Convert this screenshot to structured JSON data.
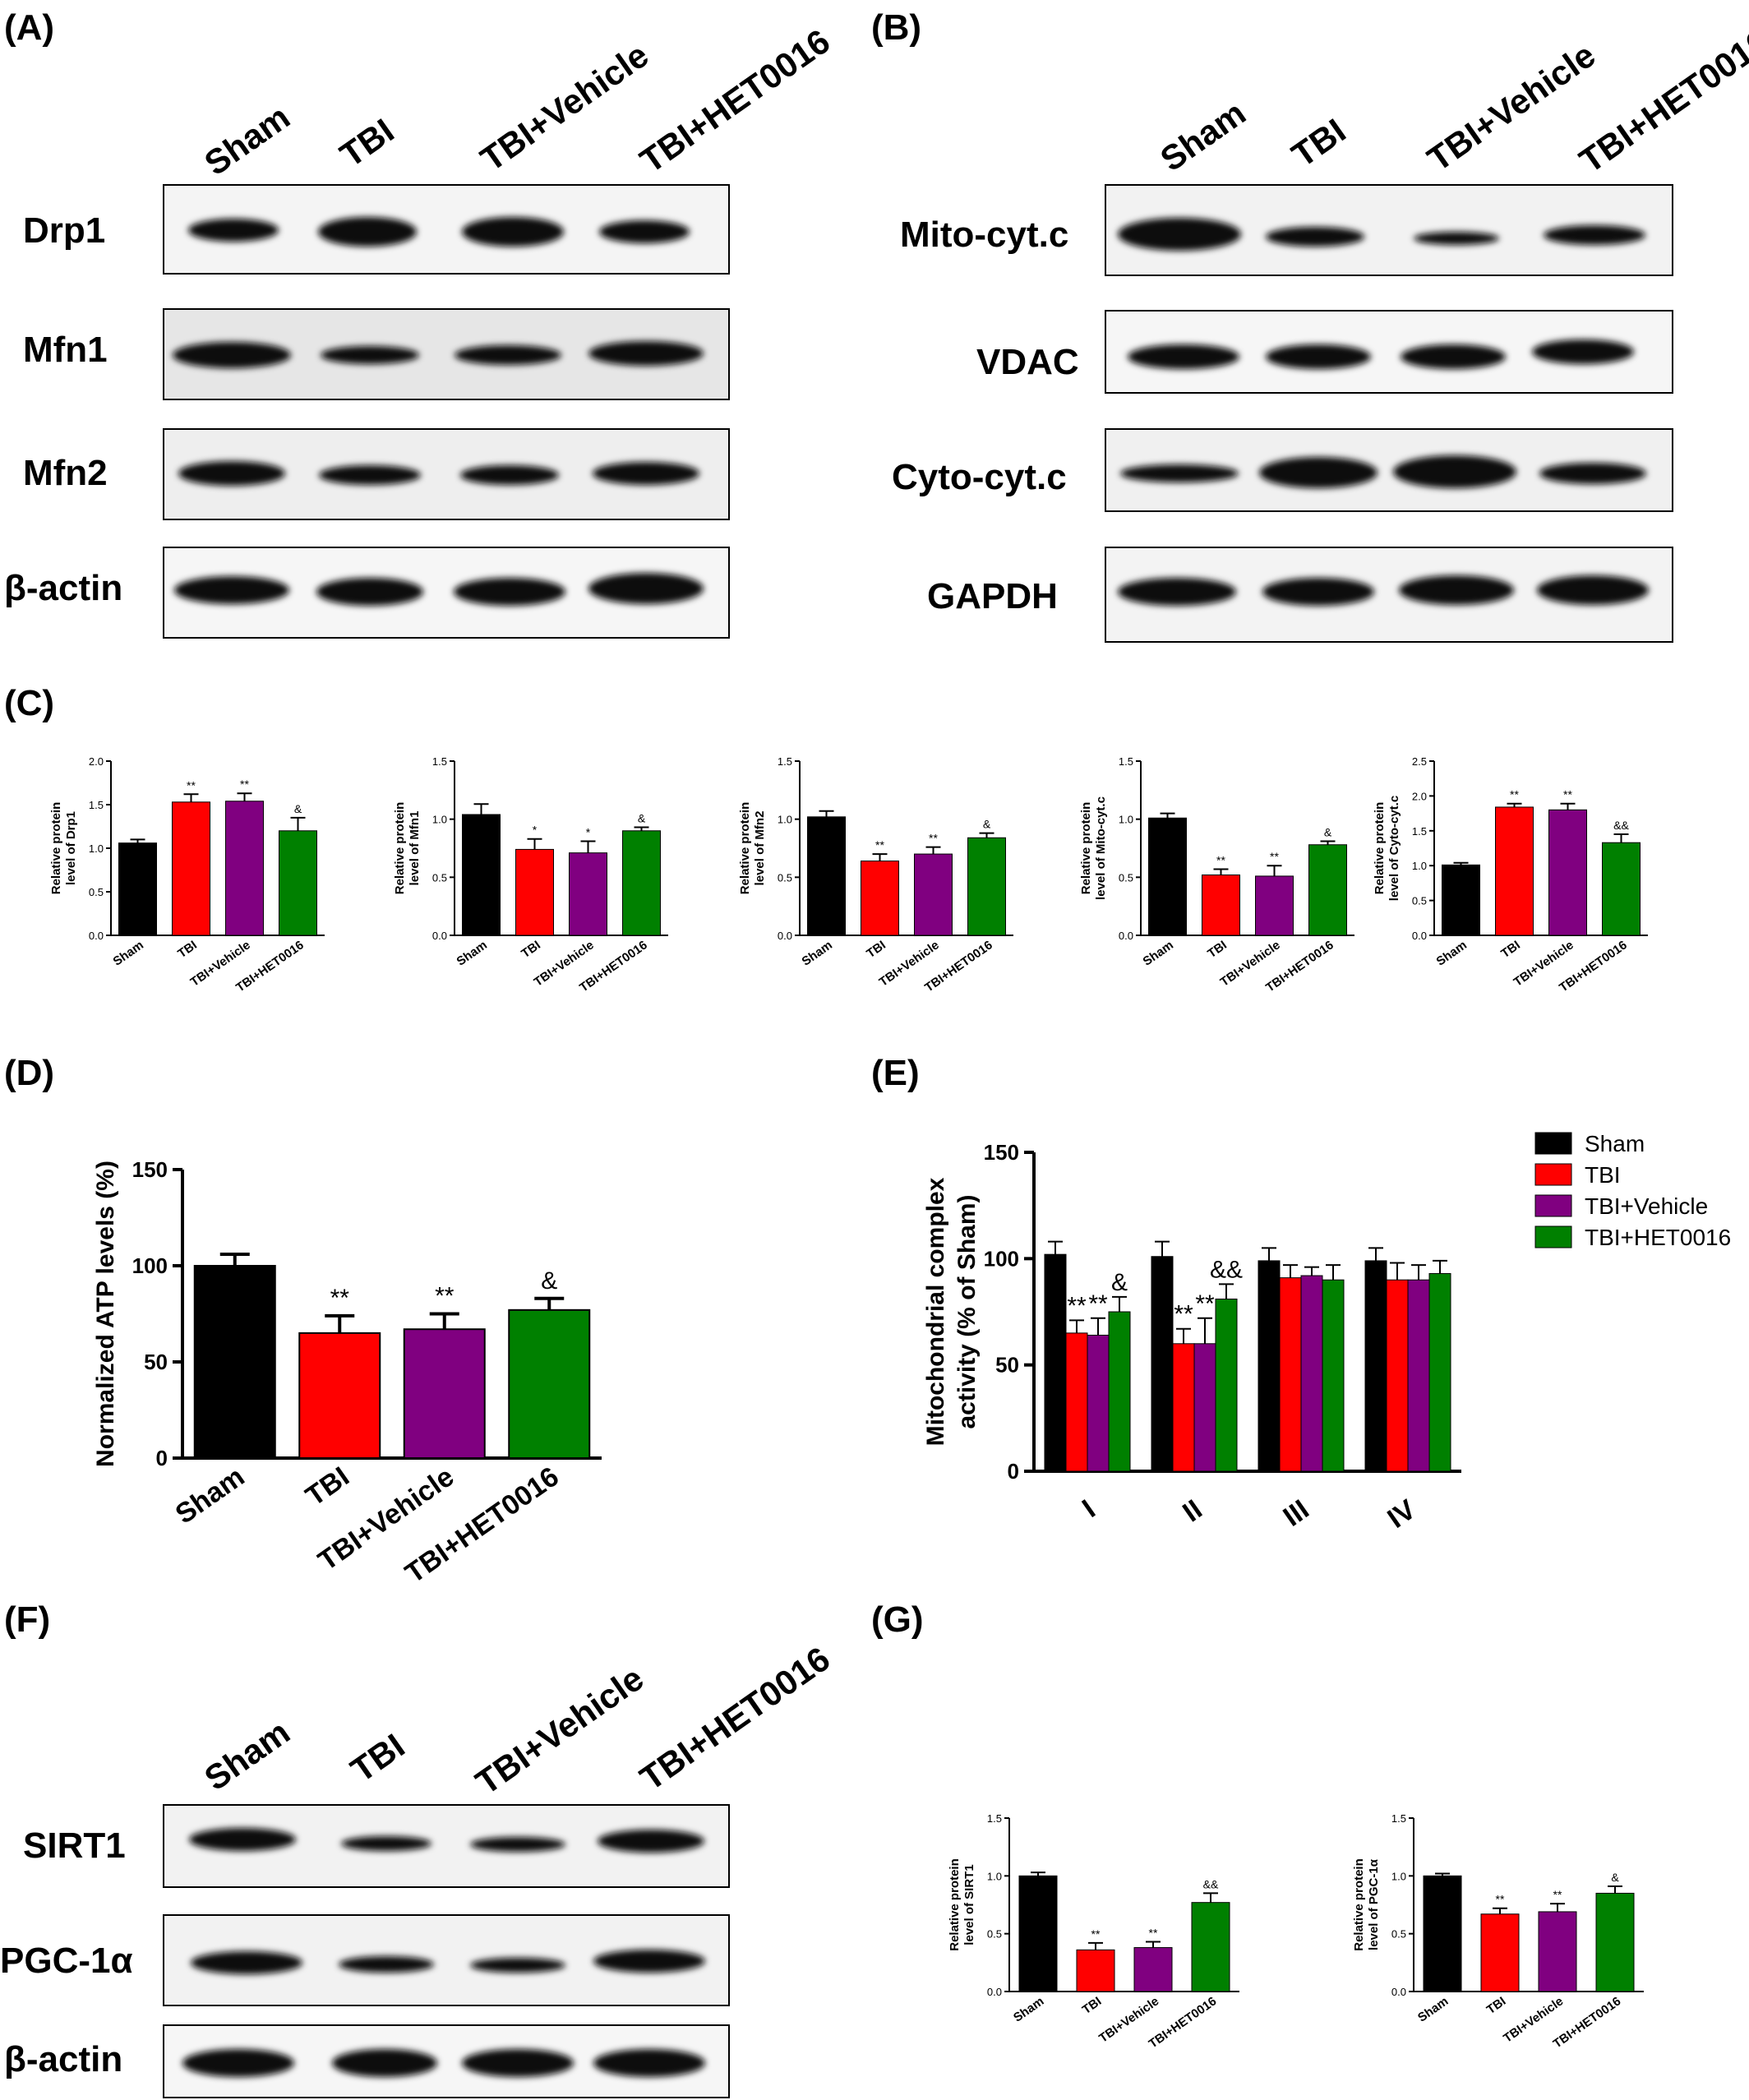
{
  "colors": {
    "sham": "#000000",
    "tbi": "#ff0000",
    "vehicle": "#800080",
    "het": "#008000"
  },
  "panels": {
    "A": "(A)",
    "B": "(B)",
    "C": "(C)",
    "D": "(D)",
    "E": "(E)",
    "F": "(F)",
    "G": "(G)"
  },
  "lanes": [
    "Sham",
    "TBI",
    "TBI+Vehicle",
    "TBI+HET0016"
  ],
  "blotA": {
    "proteins": [
      "Drp1",
      "Mfn1",
      "Mfn2",
      "β-actin"
    ]
  },
  "blotB": {
    "proteins": [
      "Mito-cyt.c",
      "VDAC",
      "Cyto-cyt.c",
      "GAPDH"
    ]
  },
  "blotF": {
    "proteins": [
      "SIRT1",
      "PGC-1α",
      "β-actin"
    ]
  },
  "chart_data": [
    {
      "id": "C1",
      "type": "bar",
      "categories": [
        "Sham",
        "TBI",
        "TBI+Vehicle",
        "TBI+HET0016"
      ],
      "values": [
        1.06,
        1.53,
        1.54,
        1.2
      ],
      "errors": [
        0.04,
        0.09,
        0.09,
        0.15
      ],
      "sig": [
        "",
        "**",
        "**",
        "&"
      ],
      "ylabel": [
        "Relative protein",
        "level of Drp1"
      ],
      "ylim": [
        0,
        2.0
      ],
      "yticks": [
        "0.0",
        "0.5",
        "1.0",
        "1.5",
        "2.0"
      ]
    },
    {
      "id": "C2",
      "type": "bar",
      "categories": [
        "Sham",
        "TBI",
        "TBI+Vehicle",
        "TBI+HET0016"
      ],
      "values": [
        1.04,
        0.74,
        0.71,
        0.9
      ],
      "errors": [
        0.09,
        0.09,
        0.1,
        0.03
      ],
      "sig": [
        "",
        "*",
        "*",
        "&"
      ],
      "ylabel": [
        "Relative protein",
        "level of Mfn1"
      ],
      "ylim": [
        0,
        1.5
      ],
      "yticks": [
        "0.0",
        "0.5",
        "1.0",
        "1.5"
      ]
    },
    {
      "id": "C3",
      "type": "bar",
      "categories": [
        "Sham",
        "TBI",
        "TBI+Vehicle",
        "TBI+HET0016"
      ],
      "values": [
        1.02,
        0.64,
        0.7,
        0.84
      ],
      "errors": [
        0.05,
        0.06,
        0.06,
        0.04
      ],
      "sig": [
        "",
        "**",
        "**",
        "&"
      ],
      "ylabel": [
        "Relative protein",
        "level of Mfn2"
      ],
      "ylim": [
        0,
        1.5
      ],
      "yticks": [
        "0.0",
        "0.5",
        "1.0",
        "1.5"
      ]
    },
    {
      "id": "C4",
      "type": "bar",
      "categories": [
        "Sham",
        "TBI",
        "TBI+Vehicle",
        "TBI+HET0016"
      ],
      "values": [
        1.01,
        0.52,
        0.51,
        0.78
      ],
      "errors": [
        0.04,
        0.05,
        0.09,
        0.03
      ],
      "sig": [
        "",
        "**",
        "**",
        "&"
      ],
      "ylabel": [
        "Relative protein",
        "level of Mito-cyt.c"
      ],
      "ylim": [
        0,
        1.5
      ],
      "yticks": [
        "0.0",
        "0.5",
        "1.0",
        "1.5"
      ]
    },
    {
      "id": "C5",
      "type": "bar",
      "categories": [
        "Sham",
        "TBI",
        "TBI+Vehicle",
        "TBI+HET0016"
      ],
      "values": [
        1.01,
        1.84,
        1.8,
        1.33
      ],
      "errors": [
        0.03,
        0.05,
        0.09,
        0.12
      ],
      "sig": [
        "",
        "**",
        "**",
        "&&"
      ],
      "ylabel": [
        "Relative protein",
        "level of  Cyto-cyt.c"
      ],
      "ylim": [
        0,
        2.5
      ],
      "yticks": [
        "0.0",
        "0.5",
        "1.0",
        "1.5",
        "2.0",
        "2.5"
      ]
    },
    {
      "id": "D",
      "type": "bar",
      "categories": [
        "Sham",
        "TBI",
        "TBI+Vehicle",
        "TBI+HET0016"
      ],
      "values": [
        100,
        65,
        67,
        77
      ],
      "errors": [
        6,
        9,
        8,
        6
      ],
      "sig": [
        "",
        "**",
        "**",
        "&"
      ],
      "ylabel": [
        "Normalized ATP levels (%)"
      ],
      "ylim": [
        0,
        150
      ],
      "yticks": [
        "0",
        "50",
        "100",
        "150"
      ]
    },
    {
      "id": "E",
      "type": "bar",
      "categories": [
        "I",
        "II",
        "III",
        "IV"
      ],
      "series": [
        {
          "name": "Sham",
          "values": [
            102,
            101,
            99,
            99
          ]
        },
        {
          "name": "TBI",
          "values": [
            65,
            60,
            91,
            90
          ]
        },
        {
          "name": "TBI+Vehicle",
          "values": [
            64,
            60,
            92,
            90
          ]
        },
        {
          "name": "TBI+HET0016",
          "values": [
            75,
            81,
            90,
            93
          ]
        }
      ],
      "errors": [
        [
          6,
          7,
          6,
          6
        ],
        [
          6,
          7,
          6,
          8
        ],
        [
          8,
          12,
          4,
          7
        ],
        [
          7,
          7,
          7,
          6
        ]
      ],
      "sig": [
        [
          "",
          "**",
          "**",
          "&"
        ],
        [
          "",
          "**",
          "**",
          "&&"
        ],
        [
          "",
          "",
          "",
          ""
        ],
        [
          "",
          "",
          "",
          ""
        ]
      ],
      "ylabel": [
        "Mitochondrial complex",
        "activity (% of Sham)"
      ],
      "ylim": [
        0,
        150
      ],
      "yticks": [
        "0",
        "50",
        "100",
        "150"
      ],
      "legend": "top-right"
    },
    {
      "id": "G1",
      "type": "bar",
      "categories": [
        "Sham",
        "TBI",
        "TBI+Vehicle",
        "TBI+HET0016"
      ],
      "values": [
        1.0,
        0.36,
        0.38,
        0.77
      ],
      "errors": [
        0.03,
        0.06,
        0.05,
        0.08
      ],
      "sig": [
        "",
        "**",
        "**",
        "&&"
      ],
      "ylabel": [
        "Relative protein",
        "level of SIRT1"
      ],
      "ylim": [
        0,
        1.5
      ],
      "yticks": [
        "0.0",
        "0.5",
        "1.0",
        "1.5"
      ]
    },
    {
      "id": "G2",
      "type": "bar",
      "categories": [
        "Sham",
        "TBI",
        "TBI+Vehicle",
        "TBI+HET0016"
      ],
      "values": [
        1.0,
        0.67,
        0.69,
        0.85
      ],
      "errors": [
        0.02,
        0.05,
        0.07,
        0.06
      ],
      "sig": [
        "",
        "**",
        "**",
        "&"
      ],
      "ylabel": [
        "Relative protein",
        "level of PGC-1α"
      ],
      "ylim": [
        0,
        1.5
      ],
      "yticks": [
        "0.0",
        "0.5",
        "1.0",
        "1.5"
      ]
    }
  ]
}
